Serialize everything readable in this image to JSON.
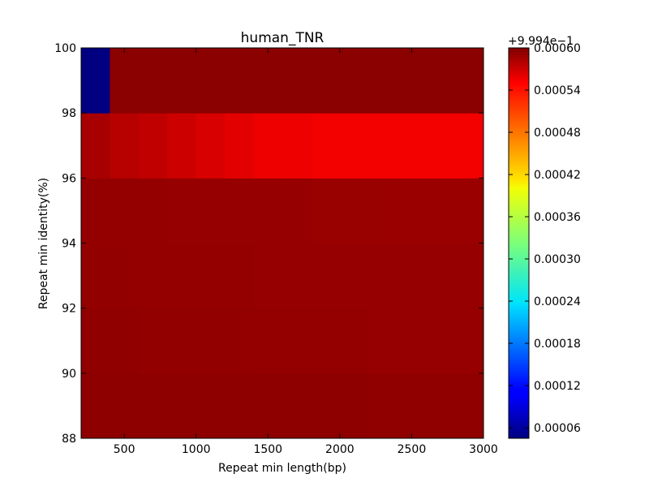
{
  "chart_data": {
    "type": "heatmap",
    "title": "human_TNR",
    "xlabel": "Repeat min length(bp)",
    "ylabel": "Repeat min identity(%)",
    "xlim": [
      200,
      3000
    ],
    "ylim": [
      88,
      100
    ],
    "xticks": [
      {
        "value": 500,
        "label": "500"
      },
      {
        "value": 1000,
        "label": "1000"
      },
      {
        "value": 1500,
        "label": "1500"
      },
      {
        "value": 2000,
        "label": "2000"
      },
      {
        "value": 2500,
        "label": "2500"
      },
      {
        "value": 3000,
        "label": "3000"
      }
    ],
    "yticks": [
      {
        "value": 88,
        "label": "88"
      },
      {
        "value": 90,
        "label": "90"
      },
      {
        "value": 92,
        "label": "92"
      },
      {
        "value": 94,
        "label": "94"
      },
      {
        "value": 96,
        "label": "96"
      },
      {
        "value": 98,
        "label": "98"
      },
      {
        "value": 100,
        "label": "100"
      }
    ],
    "x_edges": [
      200,
      400,
      600,
      800,
      1000,
      1200,
      1400,
      1600,
      1800,
      2000,
      2200,
      2400,
      2600,
      2800,
      3000
    ],
    "y_edges": [
      88,
      90,
      92,
      94,
      96,
      98,
      100
    ],
    "colorbar": {
      "vmin": 4.5e-05,
      "vmax": 0.0006,
      "offset_label": "+9.994e−1",
      "ticks": [
        {
          "value": 6e-05,
          "label": "0.00006"
        },
        {
          "value": 0.00012,
          "label": "0.00012"
        },
        {
          "value": 0.00018,
          "label": "0.00018"
        },
        {
          "value": 0.00024,
          "label": "0.00024"
        },
        {
          "value": 0.0003,
          "label": "0.00030"
        },
        {
          "value": 0.00036,
          "label": "0.00036"
        },
        {
          "value": 0.00042,
          "label": "0.00042"
        },
        {
          "value": 0.00048,
          "label": "0.00048"
        },
        {
          "value": 0.00054,
          "label": "0.00054"
        },
        {
          "value": 0.0006,
          "label": "0.00060"
        }
      ]
    },
    "rows": [
      {
        "identity_range": [
          88,
          90
        ],
        "values": [
          0.000592,
          0.000592,
          0.000592,
          0.000592,
          0.000592,
          0.000592,
          0.000592,
          0.000592,
          0.000592,
          0.000592,
          0.000591,
          0.000591,
          0.000591,
          0.000591
        ]
      },
      {
        "identity_range": [
          90,
          92
        ],
        "values": [
          0.000591,
          0.000591,
          0.00059,
          0.00059,
          0.00059,
          0.00059,
          0.000589,
          0.000589,
          0.000589,
          0.000589,
          0.000588,
          0.000588,
          0.000588,
          0.000588
        ]
      },
      {
        "identity_range": [
          92,
          94
        ],
        "values": [
          0.00059,
          0.00059,
          0.000589,
          0.000589,
          0.000589,
          0.000589,
          0.000588,
          0.000588,
          0.000588,
          0.000588,
          0.000588,
          0.000587,
          0.000587,
          0.000587
        ]
      },
      {
        "identity_range": [
          94,
          96
        ],
        "values": [
          0.000589,
          0.000589,
          0.000589,
          0.000588,
          0.000588,
          0.000588,
          0.000587,
          0.000587,
          0.000586,
          0.000586,
          0.000586,
          0.000585,
          0.000585,
          0.000585
        ]
      },
      {
        "identity_range": [
          96,
          98
        ],
        "values": [
          0.000578,
          0.00057,
          0.000565,
          0.000558,
          0.000552,
          0.000546,
          0.00054,
          0.00054,
          0.000537,
          0.000537,
          0.000537,
          0.000537,
          0.000537,
          0.000537
        ]
      },
      {
        "identity_range": [
          98,
          100
        ],
        "values": [
          4.5e-05,
          0.000594,
          0.000594,
          0.000594,
          0.000594,
          0.000594,
          0.000594,
          0.000594,
          0.000594,
          0.000594,
          0.000594,
          0.000594,
          0.000594,
          0.000594
        ]
      }
    ]
  }
}
